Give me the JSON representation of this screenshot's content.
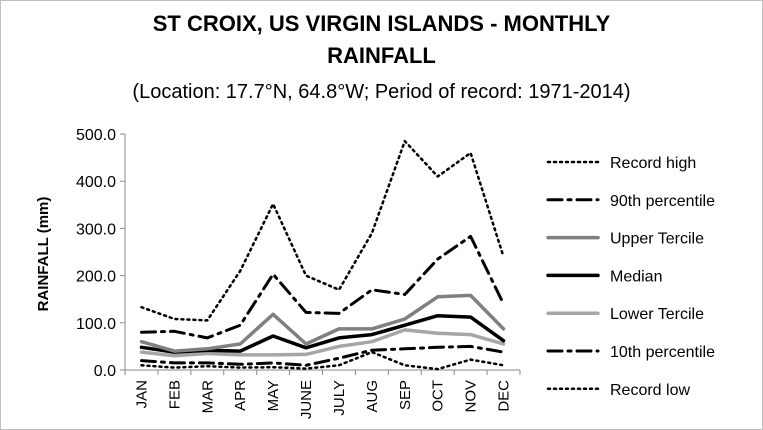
{
  "chart_data": {
    "type": "line",
    "title_line1": "ST CROIX, US VIRGIN ISLANDS - MONTHLY",
    "title_line2": "RAINFALL",
    "subtitle": "(Location: 17.7°N, 64.8°W; Period of record: 1971-2014)",
    "xlabel": "",
    "ylabel": "RAINFALL (mm)",
    "ylim": [
      0,
      500
    ],
    "yticks": [
      "0.0",
      "100.0",
      "200.0",
      "300.0",
      "400.0",
      "500.0"
    ],
    "grid": false,
    "legend_position": "right",
    "categories": [
      "JAN",
      "FEB",
      "MAR",
      "APR",
      "MAY",
      "JUNE",
      "JULY",
      "AUG",
      "SEP",
      "OCT",
      "NOV",
      "DEC"
    ],
    "series": [
      {
        "name": "Record high",
        "style": "dotted",
        "color": "#000000",
        "width": 2.5,
        "values": [
          133,
          108,
          105,
          210,
          352,
          200,
          170,
          290,
          485,
          410,
          460,
          240
        ]
      },
      {
        "name": "90th percentile",
        "style": "dashdot",
        "color": "#000000",
        "width": 3,
        "values": [
          80,
          82,
          68,
          95,
          203,
          122,
          120,
          170,
          160,
          235,
          283,
          140
        ]
      },
      {
        "name": "Upper Tercile",
        "style": "solid",
        "color": "#808080",
        "width": 3.5,
        "values": [
          60,
          40,
          45,
          55,
          118,
          55,
          87,
          87,
          108,
          155,
          158,
          87
        ]
      },
      {
        "name": "Median",
        "style": "solid",
        "color": "#000000",
        "width": 3.5,
        "values": [
          48,
          38,
          42,
          40,
          72,
          47,
          68,
          75,
          95,
          115,
          112,
          62
        ]
      },
      {
        "name": "Lower Tercile",
        "style": "solid",
        "color": "#a6a6a6",
        "width": 3.5,
        "values": [
          38,
          30,
          35,
          32,
          32,
          33,
          50,
          60,
          85,
          78,
          75,
          55
        ]
      },
      {
        "name": "10th percentile",
        "style": "dashdot",
        "color": "#000000",
        "width": 3,
        "values": [
          20,
          15,
          15,
          12,
          15,
          10,
          25,
          42,
          45,
          48,
          50,
          38
        ]
      },
      {
        "name": "Record low",
        "style": "dotted",
        "color": "#000000",
        "width": 2.5,
        "values": [
          10,
          5,
          8,
          5,
          6,
          3,
          10,
          38,
          10,
          2,
          22,
          10
        ]
      }
    ]
  }
}
